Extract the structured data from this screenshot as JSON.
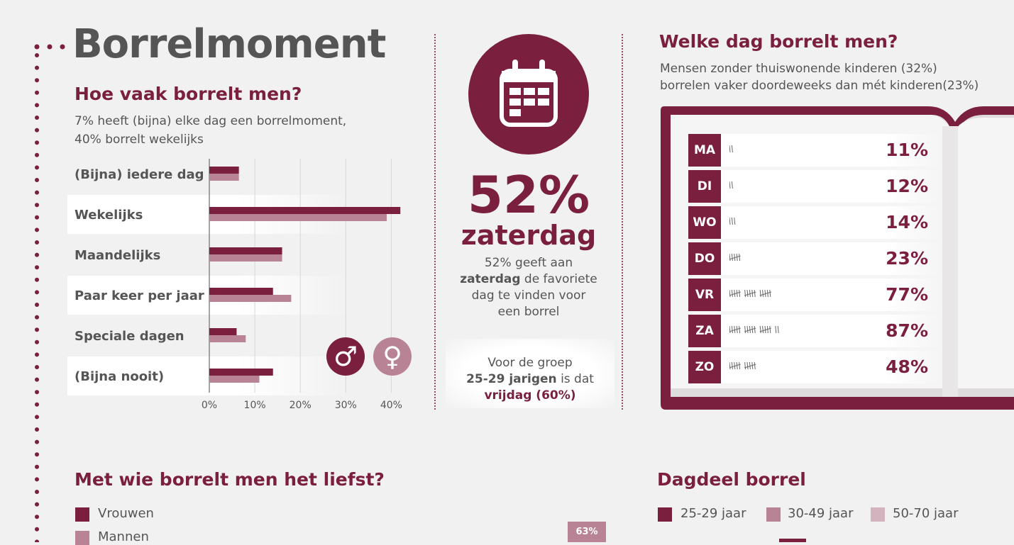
{
  "page": {
    "title": "Borrelmoment"
  },
  "colors": {
    "wine": "#7a1f3d",
    "rose": "#b88495",
    "pale": "#d3b4be",
    "background": "#f2f1f1"
  },
  "frequency": {
    "heading": "Hoe vaak borrelt men?",
    "subtitle_line1": "7% heeft (bijna) elke dag een borrelmoment,",
    "subtitle_line2": "40% borrelt wekelijks",
    "male_symbol": "♂",
    "female_symbol": "♀"
  },
  "favorite_day": {
    "big_pct": "52%",
    "day": "zaterdag",
    "desc_line1": "52% geeft aan",
    "desc_bold": "zaterdag",
    "desc_line2_rest": " de favoriete",
    "desc_line3": "dag te vinden voor",
    "desc_line4": "een borrel",
    "group_line1": "Voor de groep",
    "group_bold": "25-29 jarigen",
    "group_rest": " is dat",
    "group_line3": "vrijdag (60%)"
  },
  "weekday": {
    "heading": "Welke dag borrelt men?",
    "subtitle_line1": "Mensen zonder thuiswonende kinderen (32%)",
    "subtitle_line2": "borrelen vaker doordeweeks dan mét kinderen(23%)"
  },
  "company": {
    "heading": "Met wie borrelt men het liefst?",
    "legend": [
      "Vrouwen",
      "Mannen"
    ],
    "visible_value": "63%"
  },
  "daypart": {
    "heading": "Dagdeel borrel",
    "legend": [
      "25-29 jaar",
      "30-49 jaar",
      "50-70 jaar"
    ]
  },
  "chart_data": [
    {
      "type": "bar",
      "orientation": "horizontal",
      "title": "Hoe vaak borrelt men?",
      "categories": [
        "(Bijna) iedere dag",
        "Wekelijks",
        "Maandelijks",
        "Paar keer per jaar",
        "Speciale dagen",
        "(Bijna nooit)"
      ],
      "series": [
        {
          "values": [
            6.5,
            42,
            16,
            14,
            6,
            14
          ],
          "color": "#7a1f3d"
        },
        {
          "values": [
            6.5,
            39,
            16,
            18,
            8,
            11
          ],
          "color": "#b88495"
        }
      ],
      "xlim": [
        0,
        42
      ],
      "xticks": [
        "0%",
        "10%",
        "20%",
        "30%",
        "40%"
      ],
      "grid": true
    },
    {
      "type": "table",
      "title": "Welke dag borrelt men?",
      "rows": [
        {
          "day": "MA",
          "tally": 11,
          "pct": "11%"
        },
        {
          "day": "DI",
          "tally": 12,
          "pct": "12%"
        },
        {
          "day": "WO",
          "tally": 14,
          "pct": "14%"
        },
        {
          "day": "DO",
          "tally": 23,
          "pct": "23%"
        },
        {
          "day": "VR",
          "tally": 77,
          "pct": "77%"
        },
        {
          "day": "ZA",
          "tally": 87,
          "pct": "87%"
        },
        {
          "day": "ZO",
          "tally": 48,
          "pct": "48%"
        }
      ]
    }
  ]
}
